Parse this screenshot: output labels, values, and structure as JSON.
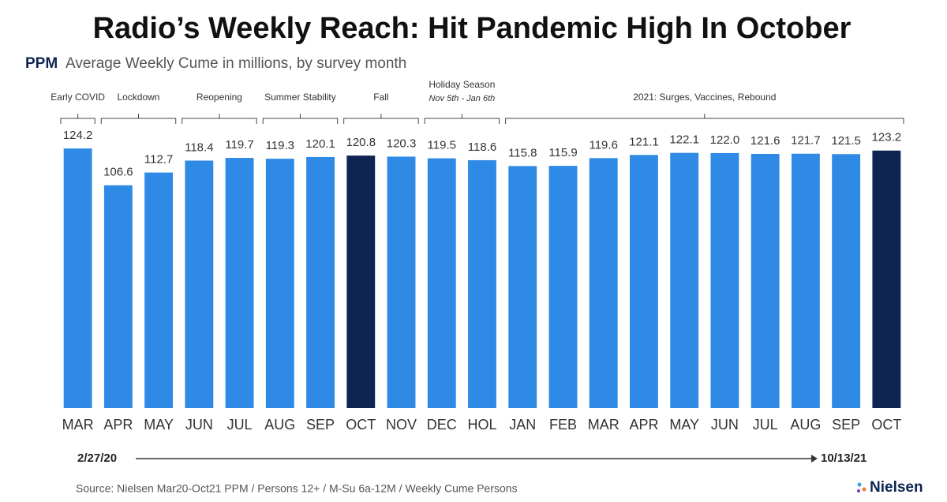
{
  "chart_data": {
    "type": "bar",
    "title": "Radio’s Weekly Reach: Hit Pandemic High In October",
    "subtitle_prefix": "PPM",
    "subtitle": "Average Weekly Cume in millions, by survey month",
    "categories": [
      "MAR",
      "APR",
      "MAY",
      "JUN",
      "JUL",
      "AUG",
      "SEP",
      "OCT",
      "NOV",
      "DEC",
      "HOL",
      "JAN",
      "FEB",
      "MAR",
      "APR",
      "MAY",
      "JUN",
      "JUL",
      "AUG",
      "SEP",
      "OCT"
    ],
    "values": [
      124.2,
      106.6,
      112.7,
      118.4,
      119.7,
      119.3,
      120.1,
      120.8,
      120.3,
      119.5,
      118.6,
      115.8,
      115.9,
      119.6,
      121.1,
      122.1,
      122.0,
      121.6,
      121.7,
      121.5,
      123.2
    ],
    "value_labels": [
      "124.2",
      "106.6",
      "112.7",
      "118.4",
      "119.7",
      "119.3",
      "120.1",
      "120.8",
      "120.3",
      "119.5",
      "118.6",
      "115.8",
      "115.9",
      "119.6",
      "121.1",
      "122.1",
      "122.0",
      "121.6",
      "121.7",
      "121.5",
      "123.2"
    ],
    "colors": [
      "#2f8ae6",
      "#2f8ae6",
      "#2f8ae6",
      "#2f8ae6",
      "#2f8ae6",
      "#2f8ae6",
      "#2f8ae6",
      "#0d2550",
      "#2f8ae6",
      "#2f8ae6",
      "#2f8ae6",
      "#2f8ae6",
      "#2f8ae6",
      "#2f8ae6",
      "#2f8ae6",
      "#2f8ae6",
      "#2f8ae6",
      "#2f8ae6",
      "#2f8ae6",
      "#2f8ae6",
      "#0d2550"
    ],
    "ylim": [
      0,
      125
    ],
    "groups": [
      {
        "label": "Early COVID",
        "from": 0,
        "to": 0
      },
      {
        "label": "Lockdown",
        "from": 1,
        "to": 2
      },
      {
        "label": "Reopening",
        "from": 3,
        "to": 4
      },
      {
        "label": "Summer Stability",
        "from": 5,
        "to": 6
      },
      {
        "label": "Fall",
        "from": 7,
        "to": 8
      },
      {
        "label": "Holiday Season",
        "sublabel": "Nov 5th - Jan 6th",
        "from": 9,
        "to": 10
      },
      {
        "label": "2021: Surges, Vaccines, Rebound",
        "from": 11,
        "to": 20
      }
    ],
    "timeline_start": "2/27/20",
    "timeline_end": "10/13/21",
    "source": "Source: Nielsen Mar20-Oct21 PPM / Persons 12+ / M-Su 6a-12M / Weekly Cume Persons",
    "brand": "Nielsen"
  }
}
